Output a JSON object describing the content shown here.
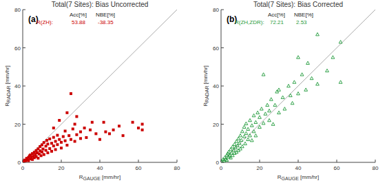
{
  "chart_data": [
    {
      "type": "scatter",
      "title": "Total(7 Sites): Bias Uncorrected",
      "panel_label": "(a)",
      "xlabel": "RGAUGE [mm/hr]",
      "ylabel": "RRADAR [mm/hr]",
      "xlim": [
        0,
        80
      ],
      "ylim": [
        0,
        80
      ],
      "xticks": [
        0,
        20,
        40,
        60,
        80
      ],
      "yticks": [
        0,
        20,
        40,
        60,
        80
      ],
      "grid": false,
      "color": "#cc0000",
      "marker": "square",
      "annotations": {
        "header": [
          "Acc[%]",
          "NBE[%]"
        ],
        "label": "R(ZH):",
        "values": [
          53.88,
          -38.35
        ]
      },
      "x": [
        0.5,
        1,
        1.5,
        2,
        2.5,
        3,
        3,
        3.5,
        4,
        4,
        4.5,
        5,
        5,
        5.5,
        6,
        6,
        6.5,
        7,
        7,
        7.5,
        8,
        8,
        8.5,
        9,
        9,
        9.5,
        10,
        10,
        10.5,
        11,
        11,
        12,
        12,
        12.5,
        13,
        13,
        14,
        14,
        15,
        15,
        16,
        16,
        17,
        17,
        18,
        18,
        19,
        20,
        20,
        21,
        22,
        22,
        23,
        24,
        25,
        25,
        26,
        27,
        27,
        28,
        30,
        30,
        32,
        33,
        35,
        36,
        38,
        40,
        42,
        43,
        45,
        47,
        50,
        52,
        57,
        60,
        62,
        62,
        23,
        19,
        16,
        28
      ],
      "values": [
        0.4,
        1.2,
        0.8,
        2.1,
        1.3,
        2.6,
        0.9,
        3.4,
        1.8,
        3.9,
        2.7,
        4.6,
        1.5,
        3.2,
        5.3,
        2.4,
        4.1,
        6.2,
        3,
        5,
        7.1,
        2.2,
        4.4,
        6,
        8.3,
        3.5,
        5.4,
        9.2,
        7,
        4.1,
        10.4,
        6.3,
        8.5,
        11.5,
        5,
        9.6,
        7.2,
        12.3,
        10,
        5.8,
        8.6,
        13.1,
        11,
        6.7,
        9.3,
        14.2,
        12,
        10.5,
        7.5,
        13.5,
        11.3,
        16.4,
        9,
        14,
        12,
        36,
        17.5,
        20,
        11,
        14.5,
        16,
        12.5,
        18,
        13,
        17,
        21,
        15,
        12,
        21,
        16,
        15,
        17,
        19,
        14,
        21,
        18,
        20,
        17,
        26,
        22,
        18,
        24
      ]
    },
    {
      "type": "scatter",
      "title": "Total(7 Sites): Bias Corrected",
      "panel_label": "(b)",
      "xlabel": "RGAUGE [mm/hr]",
      "ylabel": "RRADAR [mm/hr]",
      "xlim": [
        0,
        80
      ],
      "ylim": [
        0,
        80
      ],
      "xticks": [
        0,
        20,
        40,
        60,
        80
      ],
      "yticks": [
        0,
        20,
        40,
        60,
        80
      ],
      "grid": false,
      "color": "#1f9a3a",
      "marker": "triangle",
      "annotations": {
        "header": [
          "Acc[%]",
          "NBE[%]"
        ],
        "label": "R(ZH,ZDR):",
        "values": [
          72.21,
          2.53
        ]
      },
      "x": [
        0.5,
        1,
        1.5,
        2,
        2.5,
        3,
        3,
        3.5,
        4,
        4,
        4.5,
        5,
        5,
        5.5,
        6,
        6,
        6.5,
        7,
        7,
        7.5,
        8,
        8,
        8.5,
        9,
        9,
        9.5,
        10,
        10,
        10.5,
        11,
        11,
        12,
        12,
        12.5,
        13,
        13,
        14,
        14,
        15,
        15,
        16,
        16,
        17,
        17,
        18,
        18,
        19,
        20,
        20,
        21,
        22,
        22,
        23,
        24,
        25,
        25,
        26,
        27,
        28,
        29,
        30,
        30,
        32,
        33,
        35,
        36,
        37,
        38,
        40,
        40,
        42,
        44,
        45,
        47,
        50,
        50,
        55,
        62,
        62,
        58
      ],
      "values": [
        0.6,
        1.5,
        0.7,
        2.6,
        1.8,
        3.8,
        1.2,
        4.6,
        2.8,
        5.5,
        3.5,
        6.8,
        2.4,
        4.9,
        8.2,
        3.6,
        6.4,
        9.5,
        4.8,
        7.6,
        11,
        5.3,
        8.7,
        12.4,
        6.2,
        10,
        14,
        7.1,
        11.6,
        16.2,
        8.3,
        13.5,
        18.5,
        9.8,
        15.2,
        20.3,
        12,
        17.4,
        22,
        14,
        19.3,
        11.5,
        24.5,
        16.2,
        21,
        14,
        26,
        18.5,
        23.6,
        28,
        20.5,
        46,
        25.4,
        30,
        27,
        22,
        33,
        20,
        30,
        37,
        38,
        26,
        34,
        28,
        40,
        35,
        31,
        42,
        55,
        36,
        46,
        38,
        52,
        44,
        67,
        41,
        48,
        63,
        42,
        55
      ]
    }
  ]
}
